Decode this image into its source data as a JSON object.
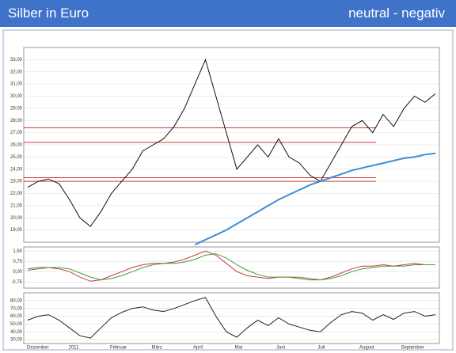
{
  "header": {
    "title": "Silber in Euro",
    "rating": "neutral - negativ"
  },
  "x_axis_labels": [
    "Dezember",
    "2011",
    "Februar",
    "März",
    "April",
    "Mai",
    "Juni",
    "Juli",
    "August",
    "September"
  ],
  "chart_data": [
    {
      "type": "line",
      "ylim": [
        18,
        34
      ],
      "yticks": [
        {
          "value": 19,
          "label": "19,00"
        },
        {
          "value": 20,
          "label": "20,00"
        },
        {
          "value": 21,
          "label": "21,00"
        },
        {
          "value": 22,
          "label": "22,00"
        },
        {
          "value": 23,
          "label": "23,00"
        },
        {
          "value": 24,
          "label": "24,00"
        },
        {
          "value": 25,
          "label": "25,00"
        },
        {
          "value": 26,
          "label": "26,00"
        },
        {
          "value": 27,
          "label": "27,00"
        },
        {
          "value": 28,
          "label": "28,00"
        },
        {
          "value": 29,
          "label": "29,00"
        },
        {
          "value": 30,
          "label": "30,00"
        },
        {
          "value": 31,
          "label": "31,00"
        },
        {
          "value": 32,
          "label": "32,00"
        },
        {
          "value": 33,
          "label": "33,00"
        }
      ],
      "grid": true,
      "hlines": {
        "color": "#c83c3c",
        "values": [
          23.3,
          23.0,
          27.4,
          26.2
        ]
      },
      "series": [
        {
          "color": "#111111",
          "values": [
            22.5,
            23,
            23.2,
            22.8,
            21.5,
            20,
            19.3,
            20.5,
            22,
            23,
            24,
            25.5,
            26,
            26.5,
            27.5,
            29,
            31,
            33,
            30,
            27,
            24,
            25,
            26,
            25,
            26.5,
            25,
            24.5,
            23.5,
            23,
            24.5,
            26,
            27.5,
            28,
            27,
            28.5,
            27.5,
            29,
            30,
            29.5,
            30.2
          ]
        },
        {
          "color": "#3b8fd6",
          "values": [
            null,
            null,
            null,
            null,
            null,
            null,
            null,
            null,
            null,
            null,
            null,
            null,
            null,
            null,
            null,
            null,
            17.8,
            18.2,
            18.6,
            19.0,
            19.5,
            20.0,
            20.5,
            21.0,
            21.5,
            21.9,
            22.3,
            22.7,
            23.0,
            23.3,
            23.6,
            23.9,
            24.1,
            24.3,
            24.5,
            24.7,
            24.9,
            25.0,
            25.2,
            25.3
          ]
        }
      ]
    },
    {
      "type": "line",
      "ylim": [
        -1.2,
        1.8
      ],
      "yticks": [
        {
          "value": 1.5,
          "label": "1,50"
        },
        {
          "value": 0.75,
          "label": "0,75"
        },
        {
          "value": 0,
          "label": "0,00"
        },
        {
          "value": -0.75,
          "label": "-0,75"
        }
      ],
      "grid": true,
      "series": [
        {
          "color": "#c83c3c",
          "values": [
            0.2,
            0.3,
            0.3,
            0.2,
            0.0,
            -0.4,
            -0.7,
            -0.6,
            -0.3,
            0.0,
            0.3,
            0.5,
            0.6,
            0.6,
            0.7,
            0.9,
            1.2,
            1.5,
            1.2,
            0.6,
            0.0,
            -0.3,
            -0.4,
            -0.5,
            -0.4,
            -0.4,
            -0.5,
            -0.6,
            -0.6,
            -0.4,
            -0.1,
            0.2,
            0.4,
            0.4,
            0.5,
            0.4,
            0.5,
            0.6,
            0.5,
            0.5
          ]
        },
        {
          "color": "#3ba03b",
          "values": [
            0.1,
            0.2,
            0.3,
            0.3,
            0.2,
            -0.1,
            -0.4,
            -0.6,
            -0.5,
            -0.3,
            0.0,
            0.3,
            0.5,
            0.6,
            0.6,
            0.7,
            0.9,
            1.2,
            1.3,
            1.0,
            0.5,
            0.1,
            -0.2,
            -0.4,
            -0.4,
            -0.4,
            -0.4,
            -0.5,
            -0.6,
            -0.5,
            -0.3,
            0.0,
            0.2,
            0.3,
            0.4,
            0.4,
            0.4,
            0.5,
            0.5,
            0.5
          ]
        }
      ]
    },
    {
      "type": "line",
      "ylim": [
        25,
        90
      ],
      "yticks": [
        {
          "value": 30,
          "label": "30,00"
        },
        {
          "value": 40,
          "label": "40,00"
        },
        {
          "value": 50,
          "label": "50,00"
        },
        {
          "value": 60,
          "label": "60,00"
        },
        {
          "value": 70,
          "label": "70,00"
        },
        {
          "value": 80,
          "label": "80,00"
        }
      ],
      "grid": true,
      "series": [
        {
          "color": "#222222",
          "values": [
            55,
            60,
            62,
            55,
            45,
            35,
            32,
            45,
            58,
            65,
            70,
            72,
            68,
            66,
            70,
            75,
            80,
            84,
            60,
            40,
            33,
            45,
            55,
            48,
            58,
            50,
            46,
            42,
            40,
            52,
            62,
            66,
            64,
            55,
            62,
            56,
            64,
            66,
            60,
            62
          ]
        }
      ]
    }
  ]
}
